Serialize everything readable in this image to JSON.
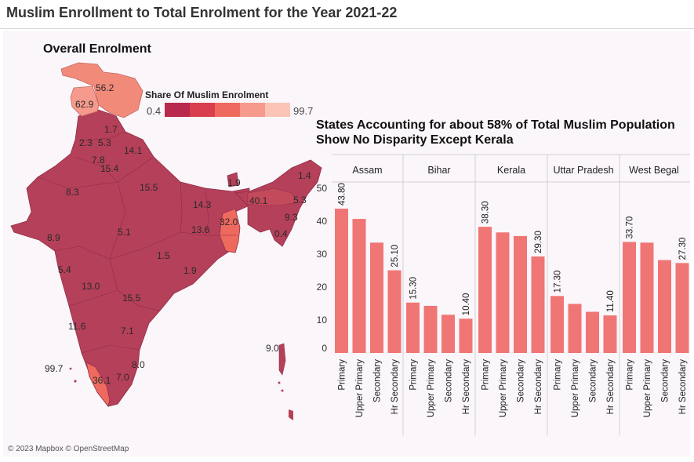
{
  "title": "Muslim Enrollment to Total Enrolment for the Year 2021-22",
  "map": {
    "heading": "Overall Enrolment",
    "legend_title": "Share Of Muslim Enrolment",
    "legend_min": "0.4",
    "legend_max": "99.7",
    "legend_colors": [
      "#b8294d",
      "#d93e4e",
      "#ee6a5e",
      "#f59a8c",
      "#fbc4b7"
    ],
    "labels": [
      "56.2",
      "62.9",
      "1.7",
      "2.3",
      "5.3",
      "14.1",
      "7.8",
      "15.4",
      "8.3",
      "15.5",
      "1.9",
      "1.4",
      "40.1",
      "5.3",
      "14.3",
      "9.3",
      "32.0",
      "13.6",
      "0.4",
      "8.9",
      "5.1",
      "1.5",
      "5.4",
      "1.9",
      "13.0",
      "15.5",
      "11.6",
      "7.1",
      "9.0",
      "8.0",
      "99.7",
      "7.0",
      "36.1"
    ],
    "copyright": "© 2023 Mapbox © OpenStreetMap"
  },
  "chart_data": {
    "type": "bar",
    "title": "States Accounting for about 58% of Total Muslim Population Show No Disparity Except Kerala",
    "categories": [
      "Primary",
      "Upper Primary",
      "Secondary",
      "Hr Secondary"
    ],
    "ylim": [
      0,
      55
    ],
    "yticks": [
      "0",
      "10",
      "20",
      "30",
      "40",
      "50"
    ],
    "panels": [
      {
        "name": "Assam",
        "values": [
          43.8,
          40.7,
          33.5,
          25.1
        ],
        "labels": [
          "43.80",
          "",
          "",
          "25.10"
        ]
      },
      {
        "name": "Bihar",
        "values": [
          15.3,
          14.3,
          11.6,
          10.4
        ],
        "labels": [
          "15.30",
          "",
          "",
          "10.40"
        ]
      },
      {
        "name": "Kerala",
        "values": [
          38.3,
          36.6,
          35.5,
          29.3
        ],
        "labels": [
          "38.30",
          "",
          "",
          "29.30"
        ]
      },
      {
        "name": "Uttar Pradesh",
        "values": [
          17.3,
          14.9,
          12.5,
          11.4
        ],
        "labels": [
          "17.30",
          "",
          "",
          "11.40"
        ]
      },
      {
        "name": "West Begal",
        "values": [
          33.7,
          33.5,
          28.2,
          27.3
        ],
        "labels": [
          "33.70",
          "",
          "",
          "27.30"
        ]
      }
    ]
  }
}
